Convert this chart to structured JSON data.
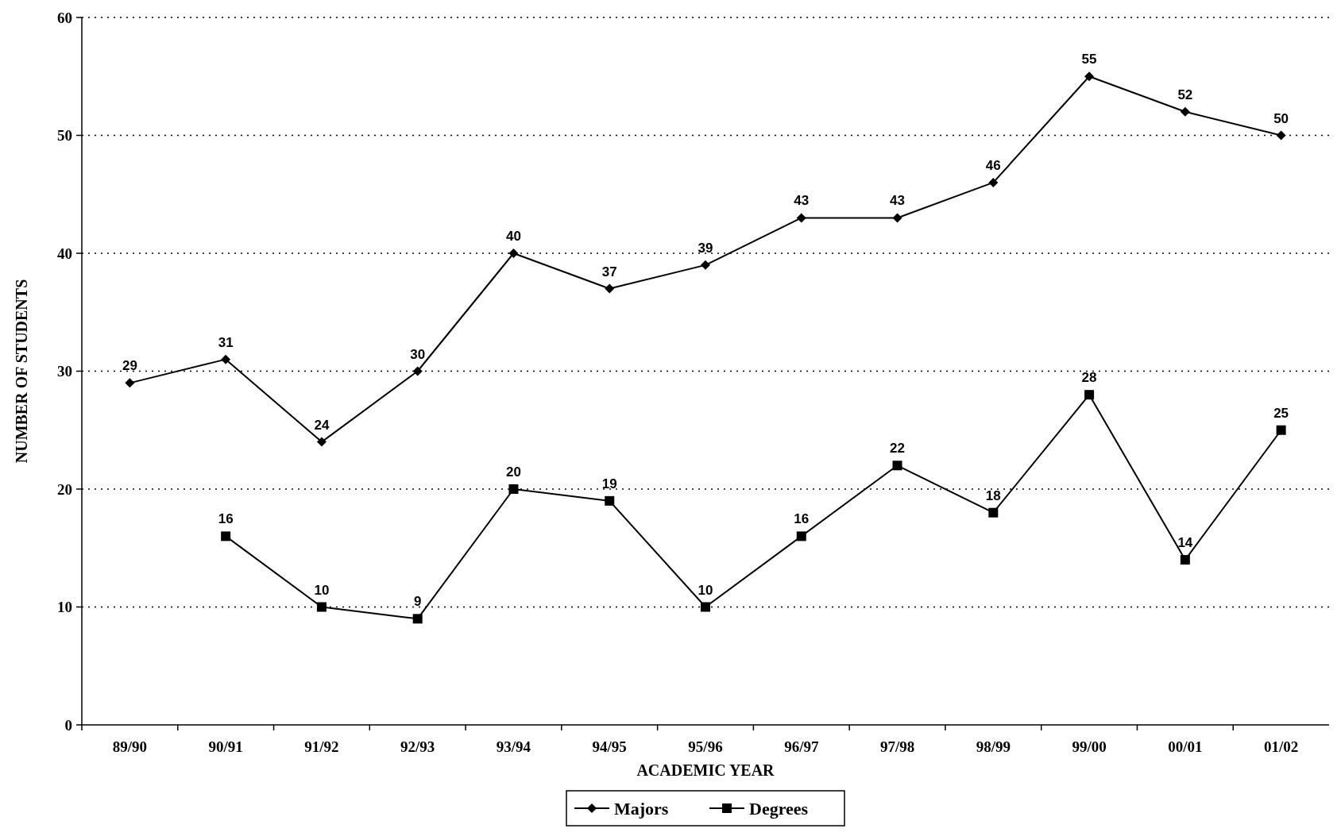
{
  "chart_data": {
    "type": "line",
    "xlabel": "ACADEMIC YEAR",
    "ylabel": "NUMBER OF STUDENTS",
    "categories": [
      "89/90",
      "90/91",
      "91/92",
      "92/93",
      "93/94",
      "94/95",
      "95/96",
      "96/97",
      "97/98",
      "98/99",
      "99/00",
      "00/01",
      "01/02"
    ],
    "series": [
      {
        "name": "Majors",
        "color": "#000000",
        "marker": "diamond",
        "values": [
          29,
          31,
          24,
          30,
          40,
          37,
          39,
          43,
          43,
          46,
          55,
          52,
          50
        ]
      },
      {
        "name": "Degrees",
        "color": "#000000",
        "marker": "square",
        "values": [
          null,
          16,
          10,
          9,
          20,
          19,
          10,
          16,
          22,
          18,
          28,
          14,
          25
        ]
      }
    ],
    "ylim": [
      0,
      60
    ],
    "yticks": [
      0,
      10,
      20,
      30,
      40,
      50,
      60
    ],
    "grid": "y",
    "data_labels": true,
    "legend": "bottom",
    "line_style": "solid"
  }
}
